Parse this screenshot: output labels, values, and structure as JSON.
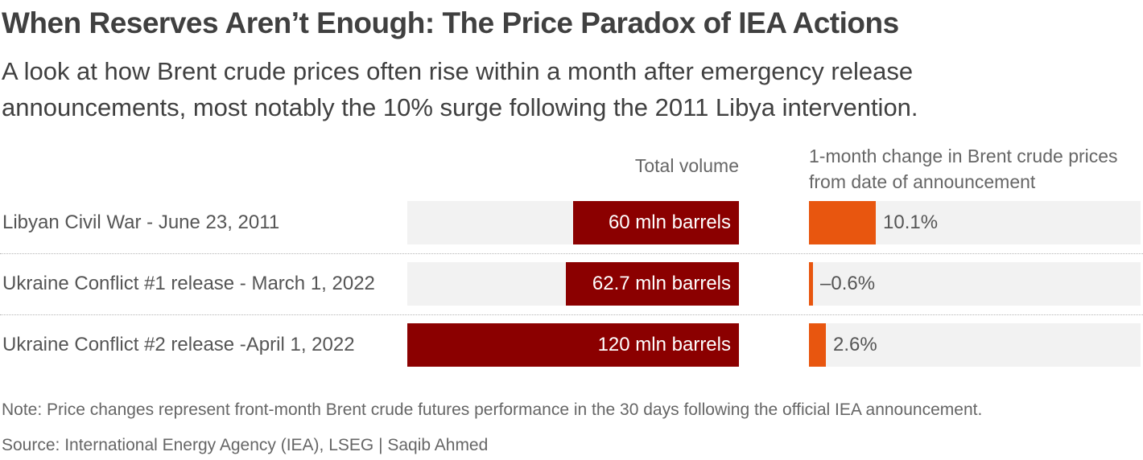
{
  "title": "When Reserves Aren’t Enough: The Price Paradox of IEA Actions",
  "subtitle": "A look at how Brent crude prices often rise within a month after emergency release announcements, most notably the 10% surge following the 2011 Libya intervention.",
  "chart_data": {
    "type": "bar",
    "orientation": "horizontal",
    "columns": {
      "volume": {
        "header": "Total volume",
        "unit": "mln barrels",
        "max": 120
      },
      "change": {
        "header": "1-month change in Brent crude prices from date of announcement",
        "unit": "%",
        "max": 50
      }
    },
    "rows": [
      {
        "category": "Libyan Civil War - June 23, 2011",
        "volume": 60,
        "volume_label": "60 mln barrels",
        "change": 10.1,
        "change_label": "10.1%"
      },
      {
        "category": "Ukraine Conflict #1 release - March 1, 2022",
        "volume": 62.7,
        "volume_label": "62.7 mln barrels",
        "change": -0.6,
        "change_label": "–0.6%"
      },
      {
        "category": "Ukraine Conflict #2 release -April 1, 2022",
        "volume": 120,
        "volume_label": "120 mln barrels",
        "change": 2.6,
        "change_label": "2.6%"
      }
    ],
    "colors": {
      "volume_bar": "#8b0000",
      "change_bar": "#e8560f",
      "track": "#f2f2f2"
    }
  },
  "note": "Note: Price changes represent front-month Brent crude futures performance in the 30 days following the official IEA announcement.",
  "source": "Source: International Energy Agency (IEA), LSEG  | Saqib Ahmed"
}
